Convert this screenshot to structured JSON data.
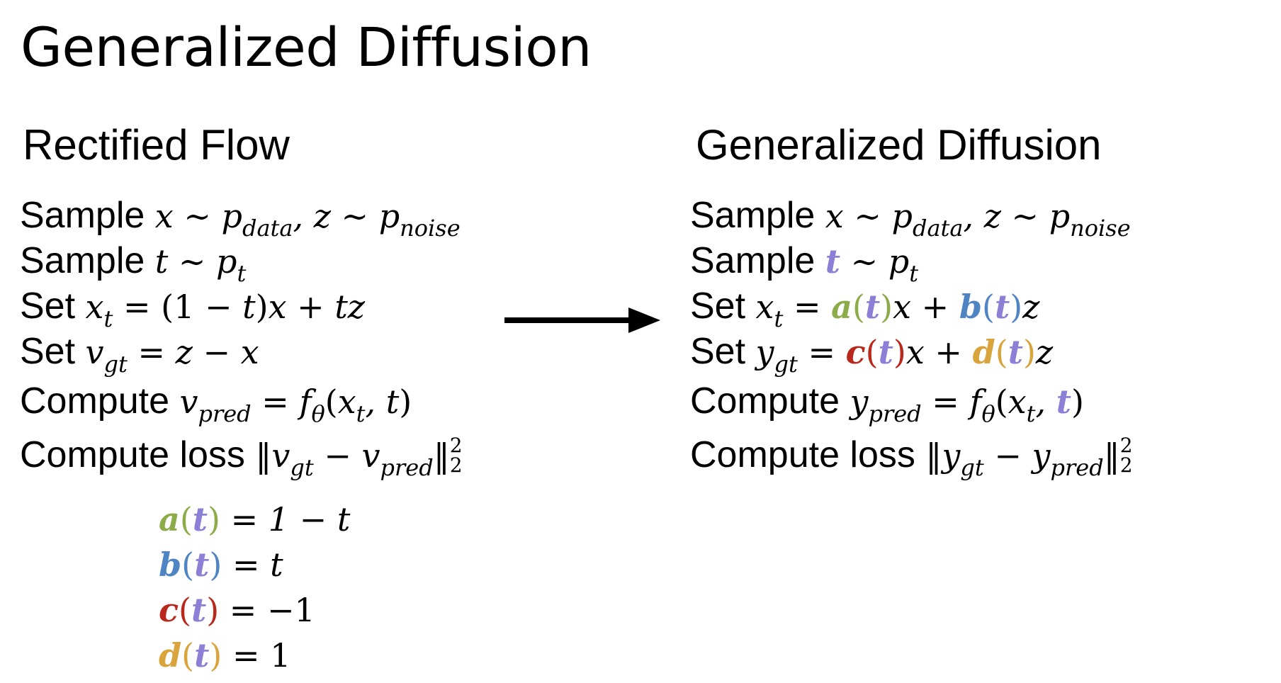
{
  "page_title": "Generalized Diffusion",
  "left": {
    "title": "Rectified Flow",
    "lines": {
      "sample1_word": "Sample",
      "sample2_word": "Sample",
      "set1_word": "Set",
      "set2_word": "Set",
      "compute1_word": "Compute",
      "compute2_word": "Compute loss"
    }
  },
  "right": {
    "title": "Generalized Diffusion",
    "lines": {
      "sample1_word": "Sample",
      "sample2_word": "Sample",
      "set1_word": "Set",
      "set2_word": "Set",
      "compute1_word": "Compute",
      "compute2_word": "Compute loss"
    }
  },
  "coefficients": [
    {
      "name": "a",
      "value": "1 − t"
    },
    {
      "name": "b",
      "value": "t"
    },
    {
      "name": "c",
      "value": "−1"
    },
    {
      "name": "d",
      "value": "1"
    }
  ],
  "colors": {
    "a": "#8cac4a",
    "b": "#4f85c2",
    "c": "#b8281d",
    "d": "#d9a43b",
    "t": "#8b80d6"
  }
}
